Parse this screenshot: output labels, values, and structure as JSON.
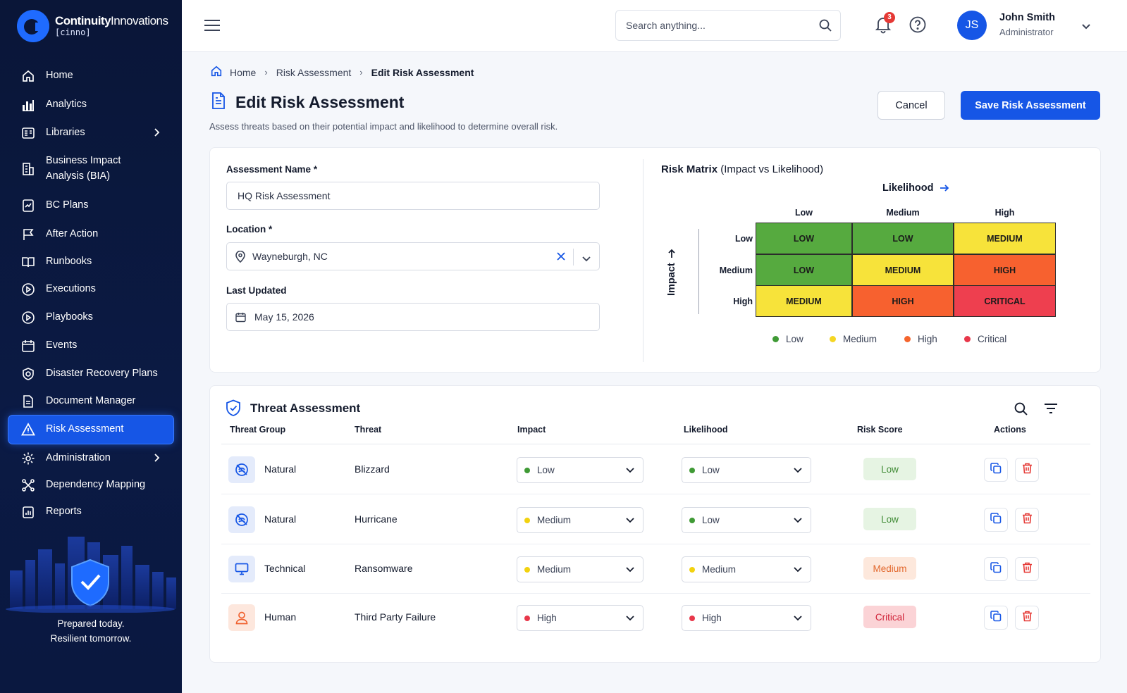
{
  "brand": {
    "name_bold": "Continuity",
    "name_light": "Innovations",
    "sub": "[cinno]"
  },
  "sidebar": {
    "items": [
      {
        "label": "Home",
        "icon": "home-icon"
      },
      {
        "label": "Analytics",
        "icon": "bar-chart-icon"
      },
      {
        "label": "Libraries",
        "icon": "library-icon",
        "has_chevron": true
      },
      {
        "label": "Business Impact Analysis (BIA)",
        "icon": "building-icon"
      },
      {
        "label": "BC Plans",
        "icon": "plan-icon"
      },
      {
        "label": "After Action",
        "icon": "flag-icon"
      },
      {
        "label": "Runbooks",
        "icon": "book-icon"
      },
      {
        "label": "Executions",
        "icon": "play-circle-icon"
      },
      {
        "label": "Playbooks",
        "icon": "play-circle-icon"
      },
      {
        "label": "Events",
        "icon": "calendar-icon"
      },
      {
        "label": "Disaster Recovery Plans",
        "icon": "shield-icon"
      },
      {
        "label": "Document Manager",
        "icon": "document-icon"
      },
      {
        "label": "Risk Assessment",
        "icon": "warning-icon",
        "active": true
      },
      {
        "label": "Administration",
        "icon": "gear-icon",
        "has_chevron": true
      },
      {
        "label": "Dependency Mapping",
        "icon": "network-icon"
      },
      {
        "label": "Reports",
        "icon": "report-icon"
      }
    ],
    "promo_line1": "Prepared today.",
    "promo_line2": "Resilient tomorrow."
  },
  "topbar": {
    "search_placeholder": "Search anything...",
    "notification_count": "3",
    "user_initials": "JS",
    "user_name": "John Smith",
    "user_role": "Administrator"
  },
  "breadcrumb": {
    "home": "Home",
    "parent": "Risk Assessment",
    "current": "Edit Risk Assessment"
  },
  "page": {
    "title": "Edit Risk Assessment",
    "subtitle": "Assess threats based on their potential impact and likelihood to determine overall risk.",
    "cancel_label": "Cancel",
    "save_label": "Save Risk Assessment"
  },
  "form": {
    "name_label": "Assessment Name *",
    "name_value": "HQ Risk Assessment",
    "location_label": "Location *",
    "location_value": "Wayneburgh, NC",
    "updated_label": "Last Updated",
    "updated_value": "May 15, 2026"
  },
  "matrix": {
    "title_bold": "Risk Matrix",
    "title_rest": "(Impact vs Likelihood)",
    "x_axis": "Likelihood",
    "y_axis": "Impact",
    "columns": [
      "Low",
      "Medium",
      "High"
    ],
    "rows": [
      "Low",
      "Medium",
      "High"
    ],
    "cells": [
      [
        "LOW",
        "LOW",
        "MEDIUM"
      ],
      [
        "LOW",
        "MEDIUM",
        "HIGH"
      ],
      [
        "MEDIUM",
        "HIGH",
        "CRITICAL"
      ]
    ],
    "legend": [
      "Low",
      "Medium",
      "High",
      "Critical"
    ],
    "colors": {
      "LOW": "#56aa3f",
      "MEDIUM": "#f7e33a",
      "HIGH": "#f7612f",
      "CRITICAL": "#ee3f4f"
    },
    "legend_colors": {
      "Low": "#3f9a35",
      "Medium": "#f5d623",
      "High": "#f5652d",
      "Critical": "#e8374a"
    }
  },
  "threats": {
    "title": "Threat Assessment",
    "headers": [
      "Threat Group",
      "Threat",
      "Impact",
      "Likelihood",
      "Risk Score",
      "Actions"
    ],
    "rows": [
      {
        "group": "Natural",
        "group_icon": "natural-icon",
        "threat": "Blizzard",
        "impact": "Low",
        "likelihood": "Low",
        "score": "Low"
      },
      {
        "group": "Natural",
        "group_icon": "natural-icon",
        "threat": "Hurricane",
        "impact": "Medium",
        "likelihood": "Low",
        "score": "Low"
      },
      {
        "group": "Technical",
        "group_icon": "monitor-icon",
        "threat": "Ransomware",
        "impact": "Medium",
        "likelihood": "Medium",
        "score": "Medium"
      },
      {
        "group": "Human",
        "group_icon": "person-icon",
        "threat": "Third Party Failure",
        "impact": "High",
        "likelihood": "High",
        "score": "Critical"
      }
    ]
  }
}
